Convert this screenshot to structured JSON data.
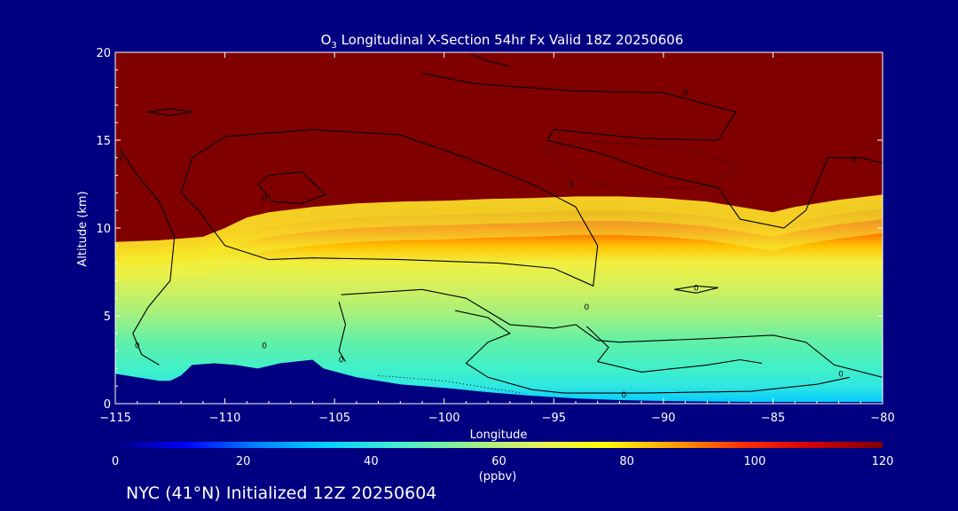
{
  "chart_data": {
    "type": "heatmap",
    "title": {
      "pre": "O",
      "sub": "3",
      "post": " Longitudinal X-Section 54hr  Fx Valid 18Z 20250606"
    },
    "xlabel": "Longitude",
    "ylabel": "Altitude (km)",
    "xlim": [
      -115,
      -80
    ],
    "ylim": [
      0,
      20
    ],
    "x_ticks": [
      -115,
      -110,
      -105,
      -100,
      -95,
      -90,
      -85,
      -80
    ],
    "y_ticks": [
      0,
      5,
      10,
      15,
      20
    ],
    "colorbar": {
      "min": 0,
      "max": 120,
      "ticks": [
        0,
        20,
        40,
        60,
        80,
        100,
        120
      ],
      "unit": "(ppbv)",
      "colors": [
        "#000080",
        "#0000ff",
        "#0080ff",
        "#00d0ff",
        "#40f0d0",
        "#90f090",
        "#e0f060",
        "#ffff00",
        "#ffa000",
        "#ff3000",
        "#d00000",
        "#800000"
      ]
    },
    "tropopause_km": {
      "lon": [
        -115,
        -113,
        -112,
        -111,
        -110,
        -109,
        -108,
        -106,
        -104,
        -102,
        -100,
        -98,
        -96,
        -94,
        -92,
        -90,
        -88,
        -86,
        -85,
        -84,
        -82,
        -80
      ],
      "alt": [
        8.4,
        8.5,
        8.6,
        8.7,
        9.2,
        9.8,
        10.1,
        10.4,
        10.6,
        10.7,
        10.75,
        10.85,
        10.9,
        11.0,
        11.0,
        10.9,
        10.7,
        10.3,
        10.1,
        10.4,
        10.8,
        11.1
      ]
    },
    "terrain_km": {
      "lon": [
        -115,
        -114,
        -113,
        -112.5,
        -112,
        -111.5,
        -110.5,
        -109.5,
        -108.5,
        -107.5,
        -106,
        -105.5,
        -104,
        -102,
        -100,
        -98,
        -96,
        -94,
        -92,
        -90,
        -88,
        -86,
        -84,
        -82,
        -80
      ],
      "alt": [
        1.7,
        1.5,
        1.3,
        1.3,
        1.6,
        2.2,
        2.3,
        2.2,
        2.0,
        2.3,
        2.5,
        2.0,
        1.5,
        1.1,
        0.9,
        0.65,
        0.45,
        0.3,
        0.2,
        0.15,
        0.12,
        0.1,
        0.1,
        0.1,
        0.1
      ]
    },
    "contour_label": "0"
  },
  "footer": {
    "location": "NYC (41°N) Initialized 12Z 20250604"
  },
  "colors": {
    "background": "#000080",
    "text": "#ffffff",
    "contour": "#000000"
  }
}
